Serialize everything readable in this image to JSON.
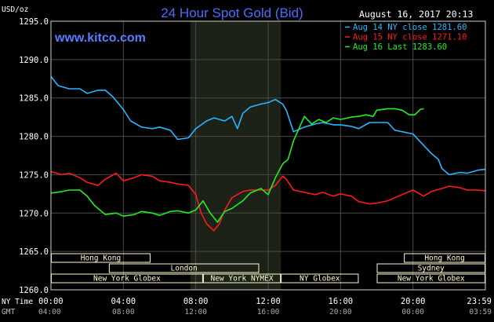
{
  "chart_data": {
    "type": "line",
    "title": "24 Hour Spot Gold (Bid)",
    "site": "www.kitco.com",
    "timestamp": "August 16, 2017 20:13",
    "yunit": "USD/oz",
    "ylim": [
      1260,
      1295
    ],
    "yticks": [
      "1295.0",
      "1290.0",
      "1285.0",
      "1280.0",
      "1275.0",
      "1270.0",
      "1265.0",
      "1260.0"
    ],
    "x_hours": [
      0,
      24
    ],
    "xticks_ny": [
      "00:00",
      "04:00",
      "08:00",
      "12:00",
      "16:00",
      "20:00",
      "23:59"
    ],
    "xticks_gmt": [
      "04:00",
      "08:00",
      "12:00",
      "16:00",
      "20:00",
      "00:00",
      "03:59"
    ],
    "x_axis_label_ny": "NY Time",
    "x_axis_label_gmt": "GMT",
    "shaded_session": [
      7.7,
      12.7
    ],
    "grid": true,
    "legend_placement": "top-right",
    "series": [
      {
        "name": "Aug 14 NY close 1281.60",
        "color": "#29b6ff",
        "points": [
          [
            0,
            1287.8
          ],
          [
            0.4,
            1286.6
          ],
          [
            1,
            1286.2
          ],
          [
            1.6,
            1286.2
          ],
          [
            2,
            1285.6
          ],
          [
            2.6,
            1286.0
          ],
          [
            3,
            1286.0
          ],
          [
            3.4,
            1285.2
          ],
          [
            4,
            1283.5
          ],
          [
            4.4,
            1282.0
          ],
          [
            5,
            1281.2
          ],
          [
            5.6,
            1281.0
          ],
          [
            6,
            1281.2
          ],
          [
            6.6,
            1280.8
          ],
          [
            7,
            1279.6
          ],
          [
            7.6,
            1279.8
          ],
          [
            8,
            1281.0
          ],
          [
            8.6,
            1282.0
          ],
          [
            9,
            1282.4
          ],
          [
            9.6,
            1282.0
          ],
          [
            10,
            1282.6
          ],
          [
            10.3,
            1281.0
          ],
          [
            10.6,
            1283.0
          ],
          [
            11,
            1283.8
          ],
          [
            11.6,
            1284.2
          ],
          [
            12,
            1284.4
          ],
          [
            12.4,
            1284.8
          ],
          [
            12.8,
            1284.2
          ],
          [
            13,
            1283.4
          ],
          [
            13.2,
            1282.0
          ],
          [
            13.4,
            1280.6
          ],
          [
            14,
            1281.2
          ],
          [
            14.6,
            1281.6
          ],
          [
            15,
            1281.8
          ],
          [
            15.6,
            1281.5
          ],
          [
            16,
            1281.5
          ],
          [
            16.6,
            1281.3
          ],
          [
            17,
            1281.0
          ],
          [
            17.6,
            1281.8
          ],
          [
            18,
            1281.8
          ],
          [
            18.6,
            1281.8
          ],
          [
            19,
            1280.8
          ],
          [
            19.6,
            1280.5
          ],
          [
            20,
            1280.3
          ],
          [
            20.6,
            1278.8
          ],
          [
            21,
            1277.8
          ],
          [
            21.4,
            1277.0
          ],
          [
            21.6,
            1275.8
          ],
          [
            22,
            1275.0
          ],
          [
            22.6,
            1275.3
          ],
          [
            23,
            1275.2
          ],
          [
            23.6,
            1275.6
          ],
          [
            23.99,
            1275.7
          ]
        ]
      },
      {
        "name": "Aug 15 NY close 1271.10",
        "color": "#ff1a1a",
        "points": [
          [
            0,
            1275.4
          ],
          [
            0.6,
            1275.0
          ],
          [
            1,
            1275.2
          ],
          [
            1.6,
            1274.6
          ],
          [
            2,
            1274.0
          ],
          [
            2.6,
            1273.6
          ],
          [
            3,
            1274.4
          ],
          [
            3.6,
            1275.2
          ],
          [
            4,
            1274.2
          ],
          [
            4.6,
            1274.6
          ],
          [
            5,
            1275.0
          ],
          [
            5.6,
            1274.8
          ],
          [
            6,
            1274.2
          ],
          [
            6.6,
            1274.0
          ],
          [
            7,
            1273.8
          ],
          [
            7.6,
            1273.6
          ],
          [
            8,
            1272.4
          ],
          [
            8.3,
            1270.0
          ],
          [
            8.6,
            1268.6
          ],
          [
            9,
            1267.7
          ],
          [
            9.3,
            1268.6
          ],
          [
            9.6,
            1270.4
          ],
          [
            10,
            1272.0
          ],
          [
            10.6,
            1272.8
          ],
          [
            11,
            1273.0
          ],
          [
            11.6,
            1273.0
          ],
          [
            12,
            1273.0
          ],
          [
            12.4,
            1273.6
          ],
          [
            12.8,
            1274.8
          ],
          [
            13,
            1274.4
          ],
          [
            13.4,
            1273.0
          ],
          [
            14,
            1272.7
          ],
          [
            14.6,
            1272.4
          ],
          [
            15,
            1272.7
          ],
          [
            15.6,
            1272.2
          ],
          [
            16,
            1272.5
          ],
          [
            16.6,
            1272.2
          ],
          [
            17,
            1271.5
          ],
          [
            17.6,
            1271.2
          ],
          [
            18,
            1271.3
          ],
          [
            18.6,
            1271.6
          ],
          [
            19,
            1272.0
          ],
          [
            19.6,
            1272.6
          ],
          [
            20,
            1273.0
          ],
          [
            20.6,
            1272.2
          ],
          [
            21,
            1272.8
          ],
          [
            21.6,
            1273.2
          ],
          [
            22,
            1273.5
          ],
          [
            22.6,
            1273.3
          ],
          [
            23,
            1273.0
          ],
          [
            23.6,
            1273.0
          ],
          [
            23.99,
            1272.9
          ]
        ]
      },
      {
        "name": "Aug 16 Last 1283.60",
        "color": "#22ee22",
        "points": [
          [
            0,
            1272.6
          ],
          [
            0.6,
            1272.8
          ],
          [
            1,
            1273.0
          ],
          [
            1.6,
            1273.0
          ],
          [
            2,
            1272.2
          ],
          [
            2.4,
            1271.0
          ],
          [
            3,
            1269.8
          ],
          [
            3.6,
            1270.0
          ],
          [
            4,
            1269.6
          ],
          [
            4.6,
            1269.8
          ],
          [
            5,
            1270.2
          ],
          [
            5.6,
            1270.0
          ],
          [
            6,
            1269.7
          ],
          [
            6.6,
            1270.2
          ],
          [
            7,
            1270.3
          ],
          [
            7.6,
            1270.0
          ],
          [
            8,
            1270.4
          ],
          [
            8.4,
            1271.6
          ],
          [
            8.8,
            1270.0
          ],
          [
            9.2,
            1268.8
          ],
          [
            9.6,
            1270.2
          ],
          [
            10,
            1270.6
          ],
          [
            10.6,
            1271.6
          ],
          [
            11,
            1272.6
          ],
          [
            11.6,
            1273.2
          ],
          [
            12,
            1272.4
          ],
          [
            12.4,
            1274.6
          ],
          [
            12.8,
            1276.4
          ],
          [
            13.1,
            1277.0
          ],
          [
            13.4,
            1279.4
          ],
          [
            13.7,
            1281.0
          ],
          [
            14,
            1282.6
          ],
          [
            14.4,
            1281.6
          ],
          [
            14.8,
            1282.2
          ],
          [
            15.2,
            1281.8
          ],
          [
            15.6,
            1282.4
          ],
          [
            16,
            1282.2
          ],
          [
            16.6,
            1282.5
          ],
          [
            17,
            1282.6
          ],
          [
            17.4,
            1282.8
          ],
          [
            17.8,
            1282.6
          ],
          [
            18,
            1283.4
          ],
          [
            18.6,
            1283.6
          ],
          [
            19,
            1283.6
          ],
          [
            19.4,
            1283.4
          ],
          [
            19.8,
            1282.8
          ],
          [
            20.1,
            1282.8
          ],
          [
            20.4,
            1283.5
          ],
          [
            20.6,
            1283.6
          ]
        ]
      }
    ],
    "markets": [
      {
        "name": "Hong Kong",
        "start": 0,
        "end": 5.5,
        "row": 1
      },
      {
        "name": "London",
        "start": 3.2,
        "end": 11.5,
        "row": 2
      },
      {
        "name": "New York Globex",
        "start": 0,
        "end": 8.4,
        "row": 3
      },
      {
        "name": "New York NYMEX",
        "start": 8.4,
        "end": 12.7,
        "row": 3
      },
      {
        "name": "NY Globex",
        "start": 12.7,
        "end": 17.0,
        "row": 3
      },
      {
        "name": "Hong Kong",
        "start": 19.5,
        "end": 24,
        "row": 1
      },
      {
        "name": "Sydney",
        "start": 18.0,
        "end": 24,
        "row": 2
      },
      {
        "name": "New York Globex",
        "start": 18.0,
        "end": 24,
        "row": 3
      }
    ],
    "colors": {
      "background": "#000000",
      "plot": "#000000",
      "grid": "#4a4a4a",
      "shade": "#1d2218",
      "market_bar": "#fffcd0"
    }
  }
}
